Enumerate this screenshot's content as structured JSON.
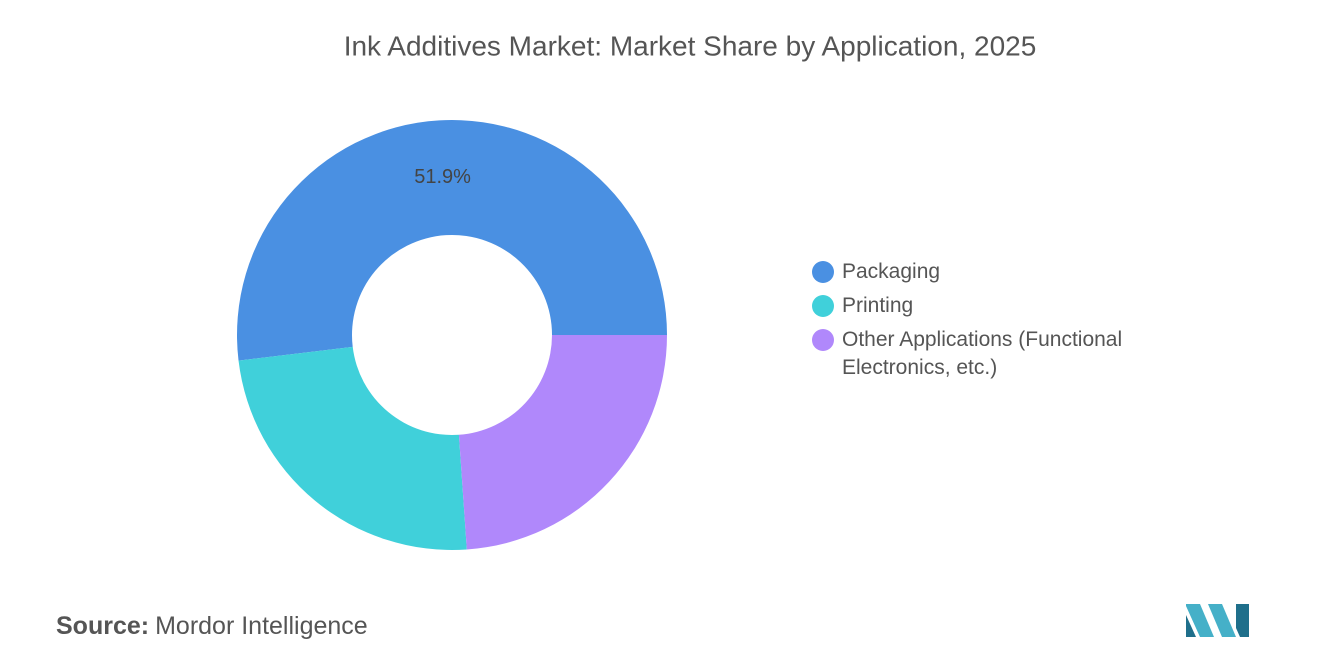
{
  "chart_data": {
    "type": "donut",
    "title": "Ink Additives Market: Market Share by Application, 2025",
    "categories": [
      "Packaging",
      "Printing",
      "Other Applications (Functional Electronics, etc.)"
    ],
    "values": [
      51.9,
      24.2,
      23.9
    ],
    "value_labels": [
      "51.9%",
      null,
      null
    ],
    "colors": [
      "#4a90e2",
      "#40d0da",
      "#b088fb"
    ],
    "legend": "right"
  },
  "source_label": "Source:",
  "source": "Mordor Intelligence"
}
